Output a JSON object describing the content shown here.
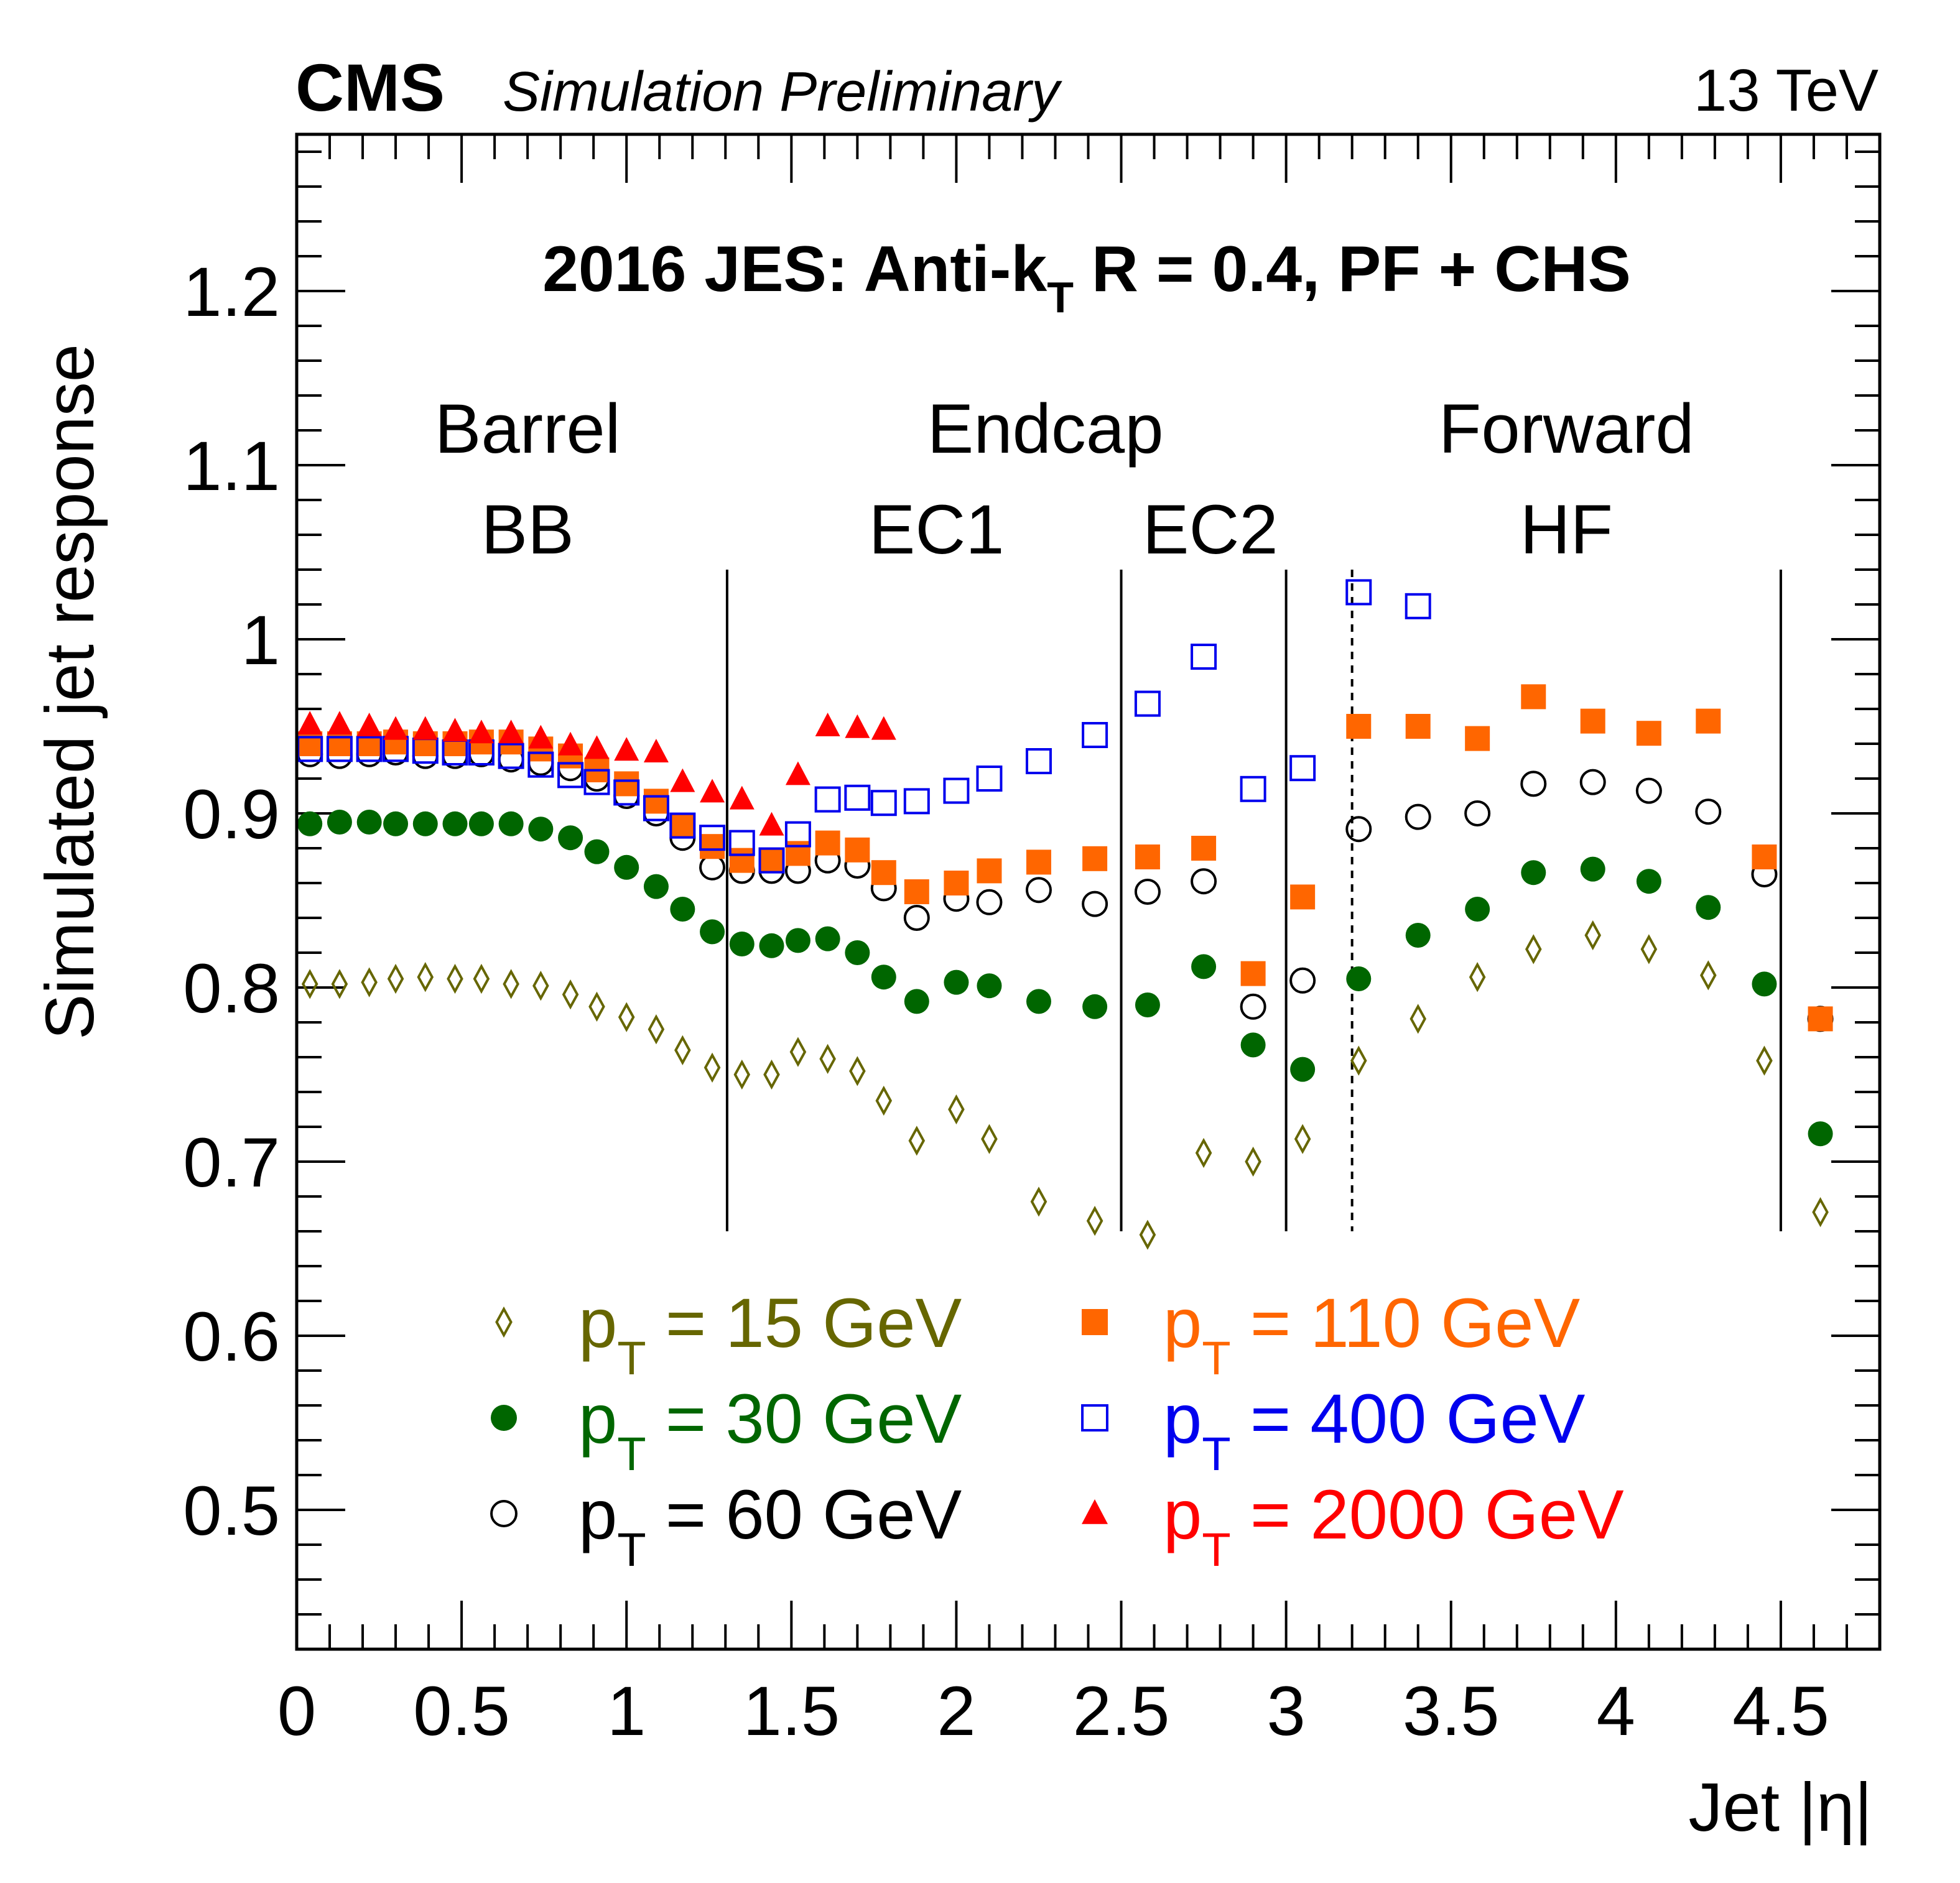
{
  "header": {
    "experiment": "CMS",
    "status": "Simulation Preliminary",
    "energy": "13 TeV"
  },
  "chart_data": {
    "type": "scatter",
    "title": "2016 JES: Anti-kT R = 0.4, PF + CHS",
    "title_parts": {
      "main": "2016 JES: Anti-k",
      "sub": "T",
      "rest": " R = 0.4, PF + CHS"
    },
    "xlabel": "Jet |η|",
    "ylabel": "Simulated jet response",
    "xlim": [
      0,
      4.8
    ],
    "ylim": [
      0.42,
      1.29
    ],
    "x_major_ticks": [
      0,
      0.5,
      1,
      1.5,
      2,
      2.5,
      3,
      3.5,
      4,
      4.5
    ],
    "x_tick_labels": [
      "0",
      "0.5",
      "1",
      "1.5",
      "2",
      "2.5",
      "3",
      "3.5",
      "4",
      "4.5"
    ],
    "y_major_ticks": [
      0.5,
      0.6,
      0.7,
      0.8,
      0.9,
      1.0,
      1.1,
      1.2
    ],
    "y_tick_labels": [
      "0.5",
      "0.6",
      "0.7",
      "0.8",
      "0.9",
      "1",
      "1.1",
      "1.2"
    ],
    "grid": false,
    "legend_position": "bottom-center",
    "regions": [
      {
        "top": "Barrel",
        "bottom": "BB",
        "x": 0.7
      },
      {
        "top": "Endcap",
        "bottom": "",
        "x": 2.27
      },
      {
        "top": "",
        "bottom": "EC1",
        "x": 1.94
      },
      {
        "top": "",
        "bottom": "EC2",
        "x": 2.77
      },
      {
        "top": "Forward",
        "bottom": "HF",
        "x": 3.85
      }
    ],
    "boundaries": [
      {
        "x": 1.305,
        "style": "solid"
      },
      {
        "x": 2.5,
        "style": "solid"
      },
      {
        "x": 3.0,
        "style": "solid"
      },
      {
        "x": 3.2,
        "style": "dashed"
      },
      {
        "x": 4.5,
        "style": "solid"
      }
    ],
    "boundary_y_range": [
      0.66,
      1.04
    ],
    "series": [
      {
        "name": "pT = 15 GeV",
        "legend_label": "p",
        "legend_sub": "T",
        "legend_rest": " = 15 GeV",
        "marker": "diamond-open",
        "color": "#666600",
        "points": [
          [
            0.04,
            0.802
          ],
          [
            0.13,
            0.802
          ],
          [
            0.22,
            0.803
          ],
          [
            0.3,
            0.805
          ],
          [
            0.39,
            0.806
          ],
          [
            0.48,
            0.805
          ],
          [
            0.56,
            0.805
          ],
          [
            0.65,
            0.802
          ],
          [
            0.74,
            0.801
          ],
          [
            0.83,
            0.796
          ],
          [
            0.91,
            0.789
          ],
          [
            1.0,
            0.783
          ],
          [
            1.09,
            0.776
          ],
          [
            1.17,
            0.764
          ],
          [
            1.26,
            0.754
          ],
          [
            1.35,
            0.75
          ],
          [
            1.44,
            0.75
          ],
          [
            1.52,
            0.763
          ],
          [
            1.61,
            0.759
          ],
          [
            1.7,
            0.752
          ],
          [
            1.78,
            0.735
          ],
          [
            1.88,
            0.712
          ],
          [
            2.0,
            0.73
          ],
          [
            2.1,
            0.713
          ],
          [
            2.25,
            0.677
          ],
          [
            2.42,
            0.666
          ],
          [
            2.58,
            0.658
          ],
          [
            2.75,
            0.705
          ],
          [
            2.9,
            0.7
          ],
          [
            3.05,
            0.713
          ],
          [
            3.22,
            0.758
          ],
          [
            3.4,
            0.782
          ],
          [
            3.58,
            0.806
          ],
          [
            3.75,
            0.822
          ],
          [
            3.93,
            0.83
          ],
          [
            4.1,
            0.822
          ],
          [
            4.28,
            0.807
          ],
          [
            4.45,
            0.758
          ],
          [
            4.62,
            0.671
          ]
        ]
      },
      {
        "name": "pT = 30 GeV",
        "legend_label": "p",
        "legend_sub": "T",
        "legend_rest": " = 30 GeV",
        "marker": "circle-filled",
        "color": "#006600",
        "points": [
          [
            0.04,
            0.894
          ],
          [
            0.13,
            0.895
          ],
          [
            0.22,
            0.895
          ],
          [
            0.3,
            0.894
          ],
          [
            0.39,
            0.894
          ],
          [
            0.48,
            0.894
          ],
          [
            0.56,
            0.894
          ],
          [
            0.65,
            0.894
          ],
          [
            0.74,
            0.891
          ],
          [
            0.83,
            0.886
          ],
          [
            0.91,
            0.878
          ],
          [
            1.0,
            0.869
          ],
          [
            1.09,
            0.858
          ],
          [
            1.17,
            0.845
          ],
          [
            1.26,
            0.832
          ],
          [
            1.35,
            0.825
          ],
          [
            1.44,
            0.824
          ],
          [
            1.52,
            0.827
          ],
          [
            1.61,
            0.828
          ],
          [
            1.7,
            0.82
          ],
          [
            1.78,
            0.806
          ],
          [
            1.88,
            0.792
          ],
          [
            2.0,
            0.803
          ],
          [
            2.1,
            0.801
          ],
          [
            2.25,
            0.792
          ],
          [
            2.42,
            0.789
          ],
          [
            2.58,
            0.79
          ],
          [
            2.75,
            0.812
          ],
          [
            2.9,
            0.767
          ],
          [
            3.05,
            0.753
          ],
          [
            3.22,
            0.805
          ],
          [
            3.4,
            0.83
          ],
          [
            3.58,
            0.845
          ],
          [
            3.75,
            0.866
          ],
          [
            3.93,
            0.868
          ],
          [
            4.1,
            0.861
          ],
          [
            4.28,
            0.846
          ],
          [
            4.45,
            0.802
          ],
          [
            4.62,
            0.716
          ]
        ]
      },
      {
        "name": "pT = 60 GeV",
        "legend_label": "p",
        "legend_sub": "T",
        "legend_rest": " = 60 GeV",
        "marker": "circle-open",
        "color": "#000000",
        "points": [
          [
            0.04,
            0.934
          ],
          [
            0.13,
            0.933
          ],
          [
            0.22,
            0.934
          ],
          [
            0.3,
            0.935
          ],
          [
            0.39,
            0.933
          ],
          [
            0.48,
            0.933
          ],
          [
            0.56,
            0.934
          ],
          [
            0.65,
            0.931
          ],
          [
            0.74,
            0.929
          ],
          [
            0.83,
            0.926
          ],
          [
            0.91,
            0.92
          ],
          [
            1.0,
            0.91
          ],
          [
            1.09,
            0.9
          ],
          [
            1.17,
            0.886
          ],
          [
            1.26,
            0.869
          ],
          [
            1.35,
            0.867
          ],
          [
            1.44,
            0.867
          ],
          [
            1.52,
            0.867
          ],
          [
            1.61,
            0.873
          ],
          [
            1.7,
            0.87
          ],
          [
            1.78,
            0.857
          ],
          [
            1.88,
            0.84
          ],
          [
            2.0,
            0.851
          ],
          [
            2.1,
            0.849
          ],
          [
            2.25,
            0.856
          ],
          [
            2.42,
            0.848
          ],
          [
            2.58,
            0.855
          ],
          [
            2.75,
            0.861
          ],
          [
            2.9,
            0.789
          ],
          [
            3.05,
            0.804
          ],
          [
            3.22,
            0.891
          ],
          [
            3.4,
            0.898
          ],
          [
            3.58,
            0.9
          ],
          [
            3.75,
            0.917
          ],
          [
            3.93,
            0.918
          ],
          [
            4.1,
            0.913
          ],
          [
            4.28,
            0.901
          ],
          [
            4.45,
            0.865
          ],
          [
            4.62,
            0.782
          ]
        ]
      },
      {
        "name": "pT = 110 GeV",
        "legend_label": "p",
        "legend_sub": "T",
        "legend_rest": " = 110 GeV",
        "marker": "square-filled",
        "color": "#ff6600",
        "points": [
          [
            0.04,
            0.94
          ],
          [
            0.13,
            0.94
          ],
          [
            0.22,
            0.94
          ],
          [
            0.3,
            0.941
          ],
          [
            0.39,
            0.94
          ],
          [
            0.48,
            0.94
          ],
          [
            0.56,
            0.941
          ],
          [
            0.65,
            0.941
          ],
          [
            0.74,
            0.937
          ],
          [
            0.83,
            0.933
          ],
          [
            0.91,
            0.925
          ],
          [
            1.0,
            0.917
          ],
          [
            1.09,
            0.907
          ],
          [
            1.17,
            0.893
          ],
          [
            1.26,
            0.881
          ],
          [
            1.35,
            0.873
          ],
          [
            1.44,
            0.873
          ],
          [
            1.52,
            0.877
          ],
          [
            1.61,
            0.883
          ],
          [
            1.7,
            0.879
          ],
          [
            1.78,
            0.866
          ],
          [
            1.88,
            0.855
          ],
          [
            2.0,
            0.86
          ],
          [
            2.1,
            0.867
          ],
          [
            2.25,
            0.872
          ],
          [
            2.42,
            0.874
          ],
          [
            2.58,
            0.875
          ],
          [
            2.75,
            0.88
          ],
          [
            2.9,
            0.808
          ],
          [
            3.05,
            0.852
          ],
          [
            3.22,
            0.95
          ],
          [
            3.4,
            0.95
          ],
          [
            3.58,
            0.943
          ],
          [
            3.75,
            0.967
          ],
          [
            3.93,
            0.953
          ],
          [
            4.1,
            0.946
          ],
          [
            4.28,
            0.953
          ],
          [
            4.45,
            0.875
          ],
          [
            4.62,
            0.782
          ]
        ]
      },
      {
        "name": "pT = 400 GeV",
        "legend_label": "p",
        "legend_sub": "T",
        "legend_rest": " = 400 GeV",
        "marker": "square-open",
        "color": "#0000ee",
        "points": [
          [
            0.04,
            0.937
          ],
          [
            0.13,
            0.937
          ],
          [
            0.22,
            0.937
          ],
          [
            0.3,
            0.937
          ],
          [
            0.39,
            0.936
          ],
          [
            0.48,
            0.935
          ],
          [
            0.56,
            0.935
          ],
          [
            0.65,
            0.933
          ],
          [
            0.74,
            0.928
          ],
          [
            0.83,
            0.922
          ],
          [
            0.91,
            0.918
          ],
          [
            1.0,
            0.912
          ],
          [
            1.09,
            0.903
          ],
          [
            1.17,
            0.893
          ],
          [
            1.26,
            0.886
          ],
          [
            1.35,
            0.883
          ],
          [
            1.44,
            0.873
          ],
          [
            1.52,
            0.888
          ],
          [
            1.61,
            0.908
          ],
          [
            1.7,
            0.909
          ],
          [
            1.78,
            0.906
          ],
          [
            1.88,
            0.907
          ],
          [
            2.0,
            0.913
          ],
          [
            2.1,
            0.92
          ],
          [
            2.25,
            0.93
          ],
          [
            2.42,
            0.945
          ],
          [
            2.58,
            0.963
          ],
          [
            2.75,
            0.99
          ],
          [
            2.9,
            0.914
          ],
          [
            3.05,
            0.926
          ],
          [
            3.22,
            1.027
          ],
          [
            3.4,
            1.019
          ]
        ]
      },
      {
        "name": "pT = 2000 GeV",
        "legend_label": "p",
        "legend_sub": "T",
        "legend_rest": " = 2000 GeV",
        "marker": "triangle-filled",
        "color": "#ff0000",
        "points": [
          [
            0.04,
            0.951
          ],
          [
            0.13,
            0.951
          ],
          [
            0.22,
            0.95
          ],
          [
            0.3,
            0.948
          ],
          [
            0.39,
            0.948
          ],
          [
            0.48,
            0.947
          ],
          [
            0.56,
            0.946
          ],
          [
            0.65,
            0.946
          ],
          [
            0.74,
            0.943
          ],
          [
            0.83,
            0.939
          ],
          [
            0.91,
            0.937
          ],
          [
            1.0,
            0.936
          ],
          [
            1.09,
            0.935
          ],
          [
            1.17,
            0.918
          ],
          [
            1.26,
            0.912
          ],
          [
            1.35,
            0.908
          ],
          [
            1.44,
            0.893
          ],
          [
            1.52,
            0.922
          ],
          [
            1.61,
            0.95
          ],
          [
            1.7,
            0.949
          ],
          [
            1.78,
            0.948
          ]
        ]
      }
    ]
  }
}
